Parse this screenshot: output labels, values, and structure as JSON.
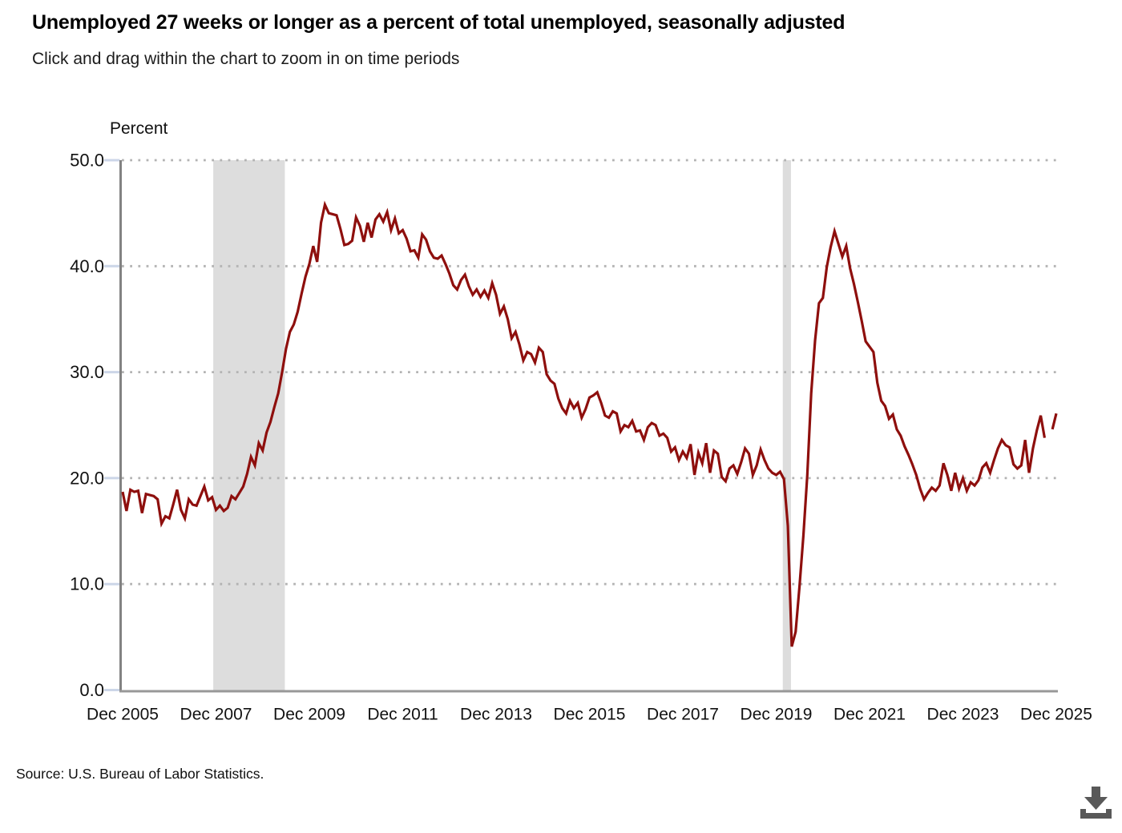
{
  "header": {
    "title": "Unemployed 27 weeks or longer as a percent of total unemployed, seasonally adjusted",
    "subtitle": "Click and drag within the chart to zoom in on time periods"
  },
  "chart": {
    "unit_label": "Percent"
  },
  "footer": {
    "source": "Source: U.S. Bureau of Labor Statistics."
  },
  "colors": {
    "line": "#8e0f0d",
    "recession_band": "#dddddd",
    "gridline": "#b3b3b3",
    "y_axis": "#828282",
    "x_axis": "#989898",
    "y_tick": "#ccd6e8",
    "label_text": "#111111",
    "download_icon": "#595959"
  },
  "chart_data": {
    "type": "line",
    "title": "Unemployed 27 weeks or longer as a percent of total unemployed, seasonally adjusted",
    "xlabel": "",
    "ylabel": "Percent",
    "ylim": [
      0,
      50
    ],
    "grid": "dotted horizontal",
    "legend": "none",
    "frequency": "monthly",
    "x_range": {
      "start": "Dec 2005",
      "end": "Dec 2025"
    },
    "missing_months": [
      "Oct 2025"
    ],
    "y_tick_values": [
      50,
      40,
      30,
      20,
      10,
      0
    ],
    "y_tick_labels": [
      "50.0",
      "40.0",
      "30.0",
      "20.0",
      "10.0",
      "0.0"
    ],
    "x_ticks": [
      {
        "month_index": 0,
        "label": "Dec 2005"
      },
      {
        "month_index": 24,
        "label": "Dec 2007"
      },
      {
        "month_index": 48,
        "label": "Dec 2009"
      },
      {
        "month_index": 72,
        "label": "Dec 2011"
      },
      {
        "month_index": 96,
        "label": "Dec 2013"
      },
      {
        "month_index": 120,
        "label": "Dec 2015"
      },
      {
        "month_index": 144,
        "label": "Dec 2017"
      },
      {
        "month_index": 168,
        "label": "Dec 2019"
      },
      {
        "month_index": 192,
        "label": "Dec 2021"
      },
      {
        "month_index": 216,
        "label": "Dec 2023"
      },
      {
        "month_index": 240,
        "label": "Dec 2025"
      }
    ],
    "recession_bands": [
      {
        "start": "Dec 2007",
        "end": "Jun 2009",
        "start_month_index": 23.3,
        "end_month_index": 41.7
      },
      {
        "start": "Feb 2020",
        "end": "Apr 2020",
        "start_month_index": 169.7,
        "end_month_index": 171.8
      }
    ],
    "series": [
      {
        "name": "Unemployed 27 weeks or longer as a percent of total unemployed",
        "start": "Dec 2005",
        "values": [
          18.7,
          16.9,
          18.9,
          18.7,
          18.8,
          16.7,
          18.5,
          18.4,
          18.3,
          18.0,
          15.7,
          16.4,
          16.2,
          17.5,
          18.9,
          17.0,
          16.2,
          18.0,
          17.5,
          17.4,
          18.3,
          19.2,
          17.9,
          18.2,
          17.0,
          17.4,
          16.9,
          17.2,
          18.3,
          18.0,
          18.6,
          19.2,
          20.4,
          22.0,
          21.2,
          23.3,
          22.6,
          24.3,
          25.3,
          26.7,
          28.0,
          30.0,
          32.2,
          33.8,
          34.5,
          35.7,
          37.4,
          39.0,
          40.2,
          41.9,
          40.4,
          44.1,
          45.8,
          45.0,
          44.9,
          44.8,
          43.5,
          42.0,
          42.1,
          42.4,
          44.6,
          43.8,
          42.3,
          44.1,
          42.7,
          44.4,
          44.9,
          44.2,
          45.1,
          43.4,
          44.5,
          43.1,
          43.4,
          42.6,
          41.4,
          41.5,
          40.8,
          43.0,
          42.5,
          41.4,
          40.8,
          40.7,
          41.0,
          40.2,
          39.3,
          38.2,
          37.8,
          38.7,
          39.2,
          38.1,
          37.3,
          37.8,
          37.1,
          37.7,
          37.0,
          38.4,
          37.3,
          35.5,
          36.2,
          35.0,
          33.2,
          33.8,
          32.6,
          31.1,
          31.9,
          31.7,
          30.9,
          32.3,
          31.9,
          29.8,
          29.2,
          28.9,
          27.5,
          26.6,
          26.1,
          27.3,
          26.6,
          27.1,
          25.7,
          26.5,
          27.6,
          27.8,
          28.1,
          27.1,
          25.9,
          25.7,
          26.3,
          26.1,
          24.4,
          25.0,
          24.8,
          25.4,
          24.4,
          24.5,
          23.6,
          24.8,
          25.2,
          25.0,
          24.0,
          24.2,
          23.8,
          22.5,
          22.9,
          21.7,
          22.5,
          21.9,
          23.2,
          20.3,
          22.4,
          21.4,
          23.3,
          20.5,
          22.6,
          22.3,
          20.1,
          19.7,
          20.9,
          21.2,
          20.4,
          21.5,
          22.8,
          22.3,
          20.3,
          21.2,
          22.7,
          21.7,
          20.9,
          20.5,
          20.3,
          20.6,
          19.9,
          15.5,
          4.1,
          5.5,
          9.8,
          14.6,
          20.3,
          28.0,
          33.0,
          36.5,
          37.0,
          39.9,
          41.8,
          43.3,
          42.1,
          40.9,
          41.9,
          39.8,
          38.3,
          36.6,
          34.8,
          32.9,
          32.4,
          31.9,
          29.0,
          27.3,
          26.8,
          25.6,
          26.0,
          24.6,
          24.0,
          23.0,
          22.2,
          21.3,
          20.3,
          19.0,
          18.0,
          18.6,
          19.1,
          18.8,
          19.3,
          21.4,
          20.3,
          18.8,
          20.5,
          19.0,
          20.0,
          18.8,
          19.6,
          19.3,
          19.8,
          21.0,
          21.4,
          20.5,
          21.7,
          22.8,
          23.6,
          23.1,
          22.9,
          21.3,
          20.9,
          21.2,
          23.6,
          20.5,
          22.8,
          24.5,
          25.9,
          23.8,
          null,
          24.6,
          26.1
        ]
      }
    ]
  }
}
